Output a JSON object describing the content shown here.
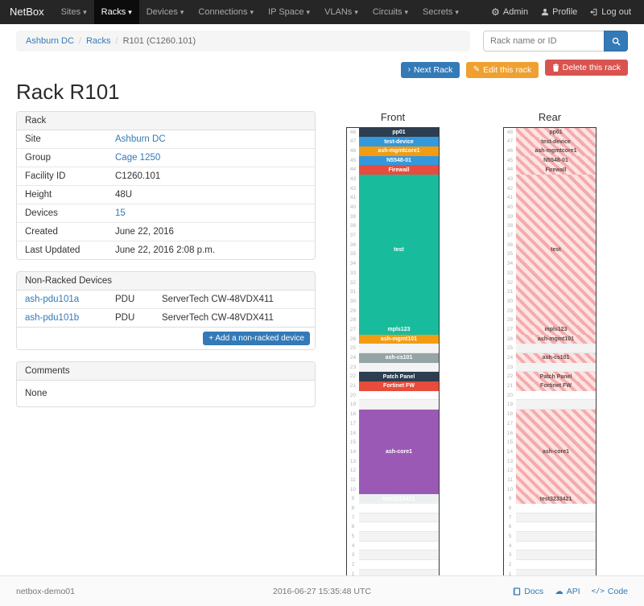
{
  "navbar": {
    "brand": "NetBox",
    "items": [
      {
        "label": "Sites"
      },
      {
        "label": "Racks",
        "active": true
      },
      {
        "label": "Devices"
      },
      {
        "label": "Connections"
      },
      {
        "label": "IP Space"
      },
      {
        "label": "VLANs"
      },
      {
        "label": "Circuits"
      },
      {
        "label": "Secrets"
      }
    ],
    "admin_label": "Admin",
    "profile_label": "Profile",
    "logout_label": "Log out",
    "gear_glyph": "⚙"
  },
  "breadcrumb": {
    "site": "Ashburn DC",
    "section": "Racks",
    "current": "R101 (C1260.101)"
  },
  "search": {
    "placeholder": "Rack name or ID"
  },
  "actions": {
    "next": "Next Rack",
    "edit": "Edit this rack",
    "delete": "Delete this rack",
    "next_glyph": "›",
    "edit_glyph": "✎"
  },
  "page_title": "Rack R101",
  "rack_panel": {
    "title": "Rack",
    "rows": [
      {
        "label": "Site",
        "value": "Ashburn DC",
        "link": true
      },
      {
        "label": "Group",
        "value": "Cage 1250",
        "link": true
      },
      {
        "label": "Facility ID",
        "value": "C1260.101",
        "link": false
      },
      {
        "label": "Height",
        "value": "48U",
        "link": false
      },
      {
        "label": "Devices",
        "value": "15",
        "link": true
      },
      {
        "label": "Created",
        "value": "June 22, 2016",
        "link": false
      },
      {
        "label": "Last Updated",
        "value": "June 22, 2016 2:08 p.m.",
        "link": false
      }
    ]
  },
  "nonracked_panel": {
    "title": "Non-Racked Devices",
    "rows": [
      {
        "name": "ash-pdu101a",
        "role": "PDU",
        "type": "ServerTech CW-48VDX411"
      },
      {
        "name": "ash-pdu101b",
        "role": "PDU",
        "type": "ServerTech CW-48VDX411"
      }
    ],
    "add_glyph": "+",
    "add_label": "Add a non-racked device"
  },
  "comments_panel": {
    "title": "Comments",
    "body": "None"
  },
  "elevation": {
    "front_title": "Front",
    "rear_title": "Rear",
    "total_units": 48,
    "devices": [
      {
        "name": "pp01",
        "top_u": 48,
        "u_height": 1,
        "color": "#2c3e50"
      },
      {
        "name": "test-device",
        "top_u": 47,
        "u_height": 1,
        "color": "#3498db"
      },
      {
        "name": "ash-mgmtcore1",
        "top_u": 46,
        "u_height": 1,
        "color": "#f39c12"
      },
      {
        "name": "N5548-01",
        "top_u": 45,
        "u_height": 1,
        "color": "#3498db"
      },
      {
        "name": "Firewall",
        "top_u": 44,
        "u_height": 1,
        "color": "#e74c3c"
      },
      {
        "name": "test",
        "top_u": 43,
        "u_height": 16,
        "color": "#18bc9c"
      },
      {
        "name": "mpls123",
        "top_u": 27,
        "u_height": 1,
        "color": "#18bc9c"
      },
      {
        "name": "ash-mgmt101",
        "top_u": 26,
        "u_height": 1,
        "color": "#f39c12"
      },
      {
        "name": "ash-cs101",
        "top_u": 24,
        "u_height": 1,
        "color": "#95a5a6"
      },
      {
        "name": "Patch Panel",
        "top_u": 22,
        "u_height": 1,
        "color": "#2c3e50"
      },
      {
        "name": "Fortinet FW",
        "top_u": 21,
        "u_height": 1,
        "color": "#e74c3c"
      },
      {
        "name": "ash-core1",
        "top_u": 18,
        "u_height": 9,
        "color": "#9b59b6"
      },
      {
        "name": "test3233421",
        "top_u": 9,
        "u_height": 1,
        "color": "#ecf0f1"
      }
    ]
  },
  "footer": {
    "hostname": "netbox-demo01",
    "timestamp": "2016-06-27 15:35:48 UTC",
    "docs": "Docs",
    "api": "API",
    "code": "Code",
    "cloud_glyph": "☁",
    "code_glyph": "</>"
  }
}
